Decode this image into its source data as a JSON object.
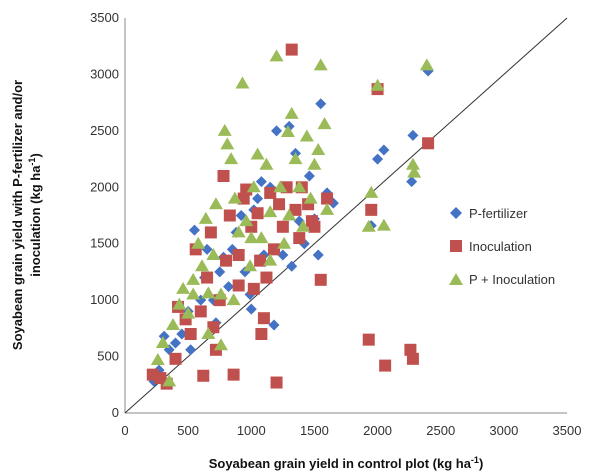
{
  "chart_data": {
    "type": "scatter",
    "xlabel": "Soyabean grain yield in control plot (kg ha",
    "xlabel_unit_sup": "-1",
    "xlabel_end": ")",
    "ylabel_line1": "Soyabean grain yield with P-fertilizer and/or",
    "ylabel_line2": "inoculation (kg ha",
    "ylabel_unit_sup": "-1",
    "ylabel_end": ")",
    "xlim": [
      0,
      3500
    ],
    "ylim": [
      0,
      3500
    ],
    "x_ticks": [
      0,
      500,
      1000,
      1500,
      2000,
      2500,
      3000,
      3500
    ],
    "y_ticks": [
      0,
      500,
      1000,
      1500,
      2000,
      2500,
      3000,
      3500
    ],
    "grid": false,
    "reference_line": "1:1",
    "legend_position": "right",
    "series": [
      {
        "name": "P-fertilizer",
        "marker": "diamond",
        "color": "#4472C4",
        "points": [
          [
            230,
            280
          ],
          [
            270,
            380
          ],
          [
            310,
            680
          ],
          [
            350,
            560
          ],
          [
            400,
            620
          ],
          [
            450,
            700
          ],
          [
            500,
            900
          ],
          [
            520,
            560
          ],
          [
            550,
            1620
          ],
          [
            600,
            1000
          ],
          [
            630,
            1200
          ],
          [
            650,
            1450
          ],
          [
            700,
            1000
          ],
          [
            720,
            800
          ],
          [
            750,
            1250
          ],
          [
            780,
            1380
          ],
          [
            820,
            1120
          ],
          [
            850,
            1450
          ],
          [
            880,
            1600
          ],
          [
            920,
            1750
          ],
          [
            950,
            1250
          ],
          [
            990,
            1050
          ],
          [
            1020,
            1800
          ],
          [
            1050,
            1900
          ],
          [
            1080,
            2050
          ],
          [
            1100,
            1400
          ],
          [
            1150,
            2000
          ],
          [
            1180,
            780
          ],
          [
            1200,
            2500
          ],
          [
            1250,
            1400
          ],
          [
            1300,
            2540
          ],
          [
            1320,
            1300
          ],
          [
            1350,
            2300
          ],
          [
            1380,
            1700
          ],
          [
            1420,
            1500
          ],
          [
            1460,
            2100
          ],
          [
            1500,
            1720
          ],
          [
            1530,
            1400
          ],
          [
            1550,
            2740
          ],
          [
            1600,
            1950
          ],
          [
            1650,
            1860
          ],
          [
            1950,
            1660
          ],
          [
            2000,
            2250
          ],
          [
            2050,
            2330
          ],
          [
            2270,
            2050
          ],
          [
            2280,
            2460
          ],
          [
            2400,
            3030
          ],
          [
            1000,
            920
          ]
        ]
      },
      {
        "name": "Inoculation",
        "marker": "square",
        "color": "#C0504D",
        "points": [
          [
            220,
            340
          ],
          [
            280,
            310
          ],
          [
            330,
            260
          ],
          [
            400,
            480
          ],
          [
            420,
            940
          ],
          [
            480,
            830
          ],
          [
            520,
            700
          ],
          [
            560,
            1450
          ],
          [
            600,
            900
          ],
          [
            620,
            330
          ],
          [
            650,
            1200
          ],
          [
            680,
            1600
          ],
          [
            700,
            760
          ],
          [
            720,
            560
          ],
          [
            750,
            1000
          ],
          [
            780,
            2100
          ],
          [
            800,
            1350
          ],
          [
            830,
            1750
          ],
          [
            860,
            340
          ],
          [
            900,
            1400
          ],
          [
            940,
            1900
          ],
          [
            960,
            1980
          ],
          [
            1000,
            1650
          ],
          [
            1020,
            1100
          ],
          [
            1050,
            1770
          ],
          [
            1080,
            700
          ],
          [
            1100,
            840
          ],
          [
            1120,
            1200
          ],
          [
            1150,
            1950
          ],
          [
            1180,
            1450
          ],
          [
            1200,
            270
          ],
          [
            1220,
            1850
          ],
          [
            1250,
            1650
          ],
          [
            1280,
            2000
          ],
          [
            1320,
            3220
          ],
          [
            1350,
            1800
          ],
          [
            1380,
            1550
          ],
          [
            1400,
            2000
          ],
          [
            1450,
            1850
          ],
          [
            1480,
            1700
          ],
          [
            1500,
            1650
          ],
          [
            1550,
            1180
          ],
          [
            1600,
            1900
          ],
          [
            1930,
            650
          ],
          [
            1950,
            1800
          ],
          [
            2000,
            2870
          ],
          [
            2060,
            420
          ],
          [
            2260,
            560
          ],
          [
            2280,
            480
          ],
          [
            2400,
            2390
          ],
          [
            1070,
            1350
          ],
          [
            900,
            1130
          ]
        ]
      },
      {
        "name": "P + Inoculation",
        "marker": "triangle",
        "color": "#9BBB59",
        "points": [
          [
            260,
            470
          ],
          [
            300,
            620
          ],
          [
            350,
            280
          ],
          [
            380,
            780
          ],
          [
            430,
            960
          ],
          [
            460,
            1100
          ],
          [
            500,
            880
          ],
          [
            540,
            1180
          ],
          [
            580,
            1500
          ],
          [
            610,
            1300
          ],
          [
            640,
            1720
          ],
          [
            660,
            1060
          ],
          [
            700,
            1400
          ],
          [
            720,
            1850
          ],
          [
            760,
            1050
          ],
          [
            790,
            2500
          ],
          [
            810,
            2380
          ],
          [
            840,
            2250
          ],
          [
            870,
            1900
          ],
          [
            900,
            1600
          ],
          [
            930,
            2920
          ],
          [
            960,
            1700
          ],
          [
            990,
            1300
          ],
          [
            1020,
            2000
          ],
          [
            1050,
            2290
          ],
          [
            1080,
            1550
          ],
          [
            1120,
            2200
          ],
          [
            1150,
            1780
          ],
          [
            1200,
            3160
          ],
          [
            1230,
            2000
          ],
          [
            1260,
            1500
          ],
          [
            1290,
            2490
          ],
          [
            1320,
            2650
          ],
          [
            1350,
            2250
          ],
          [
            1380,
            2000
          ],
          [
            1410,
            1650
          ],
          [
            1440,
            2450
          ],
          [
            1470,
            1900
          ],
          [
            1500,
            2200
          ],
          [
            1530,
            2330
          ],
          [
            1550,
            3080
          ],
          [
            1580,
            2560
          ],
          [
            1600,
            1800
          ],
          [
            1930,
            1650
          ],
          [
            1950,
            1950
          ],
          [
            2000,
            2900
          ],
          [
            2050,
            1660
          ],
          [
            2280,
            2200
          ],
          [
            2290,
            2130
          ],
          [
            2390,
            3080
          ],
          [
            860,
            1000
          ],
          [
            1000,
            1550
          ],
          [
            760,
            600
          ],
          [
            660,
            700
          ],
          [
            1150,
            1350
          ],
          [
            1300,
            1750
          ],
          [
            540,
            1050
          ]
        ]
      }
    ]
  }
}
